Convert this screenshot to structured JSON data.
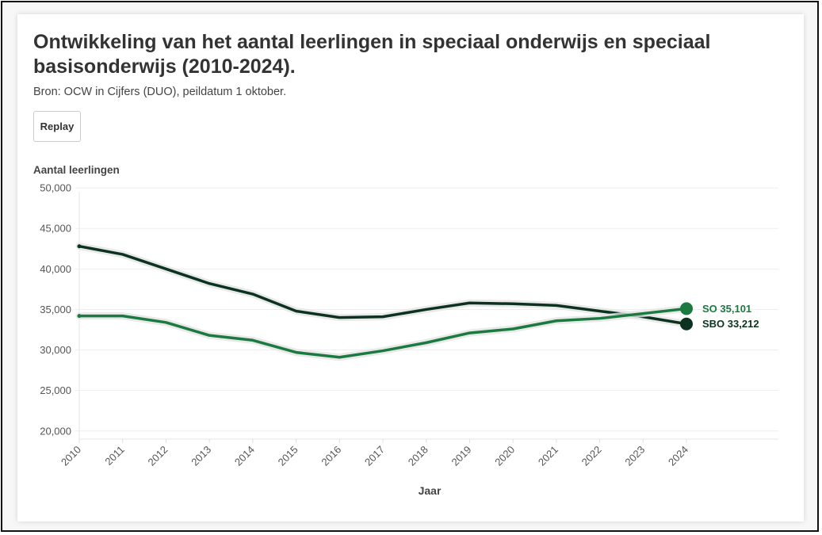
{
  "chart_data": {
    "type": "line",
    "title": "Ontwikkeling van het aantal leerlingen in speciaal onderwijs en speciaal basisonderwijs (2010-2024).",
    "subtitle": "Bron: OCW in Cijfers (DUO), peildatum 1 oktober.",
    "xlabel": "Jaar",
    "ylabel": "Aantal leerlingen",
    "x": [
      2010,
      2011,
      2012,
      2013,
      2014,
      2015,
      2016,
      2017,
      2018,
      2019,
      2020,
      2021,
      2022,
      2023,
      2024
    ],
    "x_tick_labels": [
      "2010",
      "2011",
      "2012",
      "2013",
      "2014",
      "2015",
      "2016",
      "2017",
      "2018",
      "2019",
      "2020",
      "2021",
      "2022",
      "2023",
      "2024"
    ],
    "ylim": [
      19000,
      50500
    ],
    "y_ticks": [
      20000,
      25000,
      30000,
      35000,
      40000,
      45000,
      50000
    ],
    "y_tick_labels": [
      "20,000",
      "25,000",
      "30,000",
      "35,000",
      "40,000",
      "45,000",
      "50,000"
    ],
    "grid": true,
    "series": [
      {
        "name": "SBO",
        "color": "#0b3320",
        "values": [
          42800,
          41800,
          40000,
          38200,
          36900,
          34800,
          34000,
          34100,
          35000,
          35800,
          35700,
          35500,
          34800,
          34100,
          33212
        ],
        "end_label": "SBO 33,212"
      },
      {
        "name": "SO",
        "color": "#1a7a40",
        "values": [
          34200,
          34200,
          33400,
          31800,
          31200,
          29700,
          29100,
          29900,
          30900,
          32100,
          32600,
          33600,
          33900,
          34500,
          35101
        ],
        "end_label": "SO 35,101"
      }
    ]
  },
  "controls": {
    "replay_label": "Replay"
  }
}
